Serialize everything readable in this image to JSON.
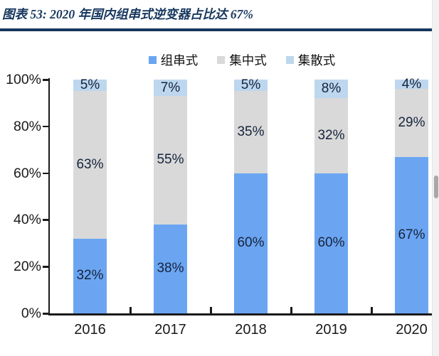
{
  "header": {
    "title": "图表 53: 2020 年国内组串式逆变器占比达 67%",
    "accent_color": "#17375E"
  },
  "chart_data": {
    "type": "bar",
    "stacked": true,
    "title": "2020 年国内组串式逆变器占比达 67%",
    "categories": [
      "2016",
      "2017",
      "2018",
      "2019",
      "2020"
    ],
    "series": [
      {
        "name": "组串式",
        "color": "#6BA5F2",
        "values": [
          32,
          38,
          60,
          60,
          67
        ]
      },
      {
        "name": "集中式",
        "color": "#D9D9D9",
        "values": [
          63,
          55,
          35,
          32,
          29
        ]
      },
      {
        "name": "集散式",
        "color": "#BDD7EE",
        "values": [
          5,
          7,
          5,
          8,
          4
        ]
      }
    ],
    "value_suffix": "%",
    "data_labels": true,
    "xlabel": "",
    "ylabel": "",
    "ylim": [
      0,
      100
    ],
    "y_ticks": [
      "0%",
      "20%",
      "40%",
      "60%",
      "80%",
      "100%"
    ],
    "grid": false,
    "legend_position": "top",
    "axis_color": "#1a1a1a",
    "label_color": "#16233d"
  }
}
